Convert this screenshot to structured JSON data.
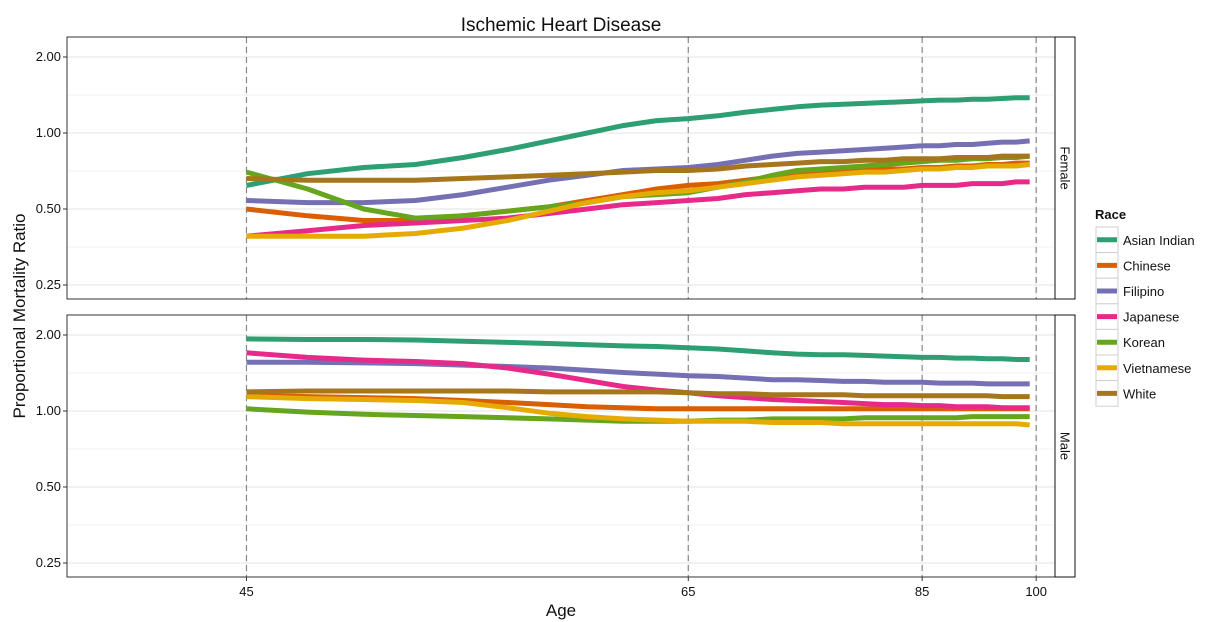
{
  "chart_data": {
    "type": "line",
    "title": "Ischemic Heart Disease",
    "xlabel": "Age",
    "ylabel": "Proportional Mortality Ratio",
    "y_scale": "log",
    "ylim": [
      0.22,
      2.4
    ],
    "xlim": [
      40,
      103
    ],
    "x_transform": "x-axis is spaced as -1/age (reciprocal scale)",
    "x_ticks": [
      45,
      65,
      85,
      100
    ],
    "y_ticks": [
      "0.25",
      "0.50",
      "1.00",
      "2.00"
    ],
    "y_tick_values": [
      0.25,
      0.5,
      1.0,
      2.0
    ],
    "vlines": [
      45,
      65,
      85,
      100
    ],
    "legend": {
      "title": "Race",
      "position": "right"
    },
    "ages": [
      45,
      47,
      49,
      51,
      53,
      55,
      57,
      59,
      61,
      63,
      65,
      67,
      69,
      71,
      73,
      75,
      77,
      79,
      81,
      83,
      85,
      87,
      89,
      91,
      93,
      95,
      97,
      99
    ],
    "panels": [
      {
        "name": "Female",
        "series": [
          {
            "name": "Asian Indian",
            "color": "#2e9e73",
            "values": [
              0.62,
              0.69,
              0.73,
              0.75,
              0.8,
              0.86,
              0.93,
              1.0,
              1.07,
              1.12,
              1.14,
              1.17,
              1.21,
              1.24,
              1.27,
              1.29,
              1.3,
              1.31,
              1.32,
              1.33,
              1.34,
              1.35,
              1.35,
              1.36,
              1.36,
              1.37,
              1.38,
              1.38
            ]
          },
          {
            "name": "Chinese",
            "color": "#d95f02",
            "values": [
              0.5,
              0.47,
              0.45,
              0.45,
              0.47,
              0.49,
              0.51,
              0.54,
              0.57,
              0.6,
              0.62,
              0.63,
              0.65,
              0.67,
              0.68,
              0.69,
              0.7,
              0.71,
              0.72,
              0.72,
              0.73,
              0.73,
              0.74,
              0.74,
              0.75,
              0.75,
              0.76,
              0.76
            ]
          },
          {
            "name": "Filipino",
            "color": "#7570b3",
            "values": [
              0.54,
              0.53,
              0.53,
              0.54,
              0.57,
              0.61,
              0.65,
              0.68,
              0.71,
              0.72,
              0.73,
              0.75,
              0.78,
              0.81,
              0.83,
              0.84,
              0.85,
              0.86,
              0.87,
              0.88,
              0.89,
              0.89,
              0.9,
              0.9,
              0.91,
              0.92,
              0.92,
              0.93
            ]
          },
          {
            "name": "Japanese",
            "color": "#e7298a",
            "values": [
              0.39,
              0.41,
              0.43,
              0.44,
              0.45,
              0.46,
              0.48,
              0.5,
              0.52,
              0.53,
              0.54,
              0.55,
              0.57,
              0.58,
              0.59,
              0.6,
              0.6,
              0.61,
              0.61,
              0.61,
              0.62,
              0.62,
              0.62,
              0.63,
              0.63,
              0.63,
              0.64,
              0.64
            ]
          },
          {
            "name": "Korean",
            "color": "#66a61e",
            "values": [
              0.7,
              0.6,
              0.5,
              0.46,
              0.47,
              0.49,
              0.51,
              0.53,
              0.56,
              0.57,
              0.58,
              0.61,
              0.64,
              0.68,
              0.71,
              0.72,
              0.73,
              0.74,
              0.75,
              0.76,
              0.77,
              0.78,
              0.78,
              0.79,
              0.79,
              0.8,
              0.8,
              0.81
            ]
          },
          {
            "name": "Vietnamese",
            "color": "#e6ab02",
            "values": [
              0.39,
              0.39,
              0.39,
              0.4,
              0.42,
              0.45,
              0.49,
              0.53,
              0.56,
              0.58,
              0.59,
              0.61,
              0.63,
              0.65,
              0.67,
              0.68,
              0.69,
              0.7,
              0.7,
              0.71,
              0.72,
              0.72,
              0.73,
              0.73,
              0.74,
              0.74,
              0.74,
              0.75
            ]
          },
          {
            "name": "White",
            "color": "#a6761d",
            "values": [
              0.66,
              0.65,
              0.65,
              0.65,
              0.66,
              0.67,
              0.68,
              0.69,
              0.7,
              0.71,
              0.71,
              0.72,
              0.74,
              0.75,
              0.76,
              0.77,
              0.77,
              0.78,
              0.78,
              0.79,
              0.79,
              0.79,
              0.8,
              0.8,
              0.8,
              0.81,
              0.81,
              0.81
            ]
          }
        ]
      },
      {
        "name": "Male",
        "series": [
          {
            "name": "Asian Indian",
            "color": "#2e9e73",
            "values": [
              1.93,
              1.92,
              1.92,
              1.91,
              1.89,
              1.87,
              1.85,
              1.83,
              1.81,
              1.8,
              1.78,
              1.76,
              1.73,
              1.7,
              1.68,
              1.67,
              1.67,
              1.66,
              1.65,
              1.64,
              1.63,
              1.63,
              1.62,
              1.62,
              1.61,
              1.61,
              1.6,
              1.6
            ]
          },
          {
            "name": "Chinese",
            "color": "#d95f02",
            "values": [
              1.15,
              1.14,
              1.13,
              1.12,
              1.1,
              1.08,
              1.06,
              1.04,
              1.03,
              1.02,
              1.02,
              1.02,
              1.02,
              1.02,
              1.02,
              1.02,
              1.02,
              1.02,
              1.02,
              1.02,
              1.02,
              1.02,
              1.02,
              1.02,
              1.02,
              1.02,
              1.02,
              1.02
            ]
          },
          {
            "name": "Filipino",
            "color": "#7570b3",
            "values": [
              1.56,
              1.56,
              1.55,
              1.54,
              1.52,
              1.5,
              1.48,
              1.45,
              1.42,
              1.4,
              1.38,
              1.37,
              1.35,
              1.33,
              1.33,
              1.32,
              1.31,
              1.31,
              1.3,
              1.3,
              1.3,
              1.29,
              1.29,
              1.29,
              1.28,
              1.28,
              1.28,
              1.28
            ]
          },
          {
            "name": "Japanese",
            "color": "#e7298a",
            "values": [
              1.7,
              1.63,
              1.59,
              1.57,
              1.54,
              1.48,
              1.4,
              1.32,
              1.25,
              1.21,
              1.18,
              1.15,
              1.13,
              1.11,
              1.1,
              1.09,
              1.08,
              1.07,
              1.06,
              1.06,
              1.05,
              1.05,
              1.04,
              1.04,
              1.04,
              1.03,
              1.03,
              1.03
            ]
          },
          {
            "name": "Korean",
            "color": "#66a61e",
            "values": [
              1.02,
              0.99,
              0.97,
              0.96,
              0.95,
              0.94,
              0.93,
              0.92,
              0.91,
              0.91,
              0.91,
              0.92,
              0.92,
              0.93,
              0.93,
              0.93,
              0.93,
              0.94,
              0.94,
              0.94,
              0.94,
              0.94,
              0.94,
              0.95,
              0.95,
              0.95,
              0.95,
              0.95
            ]
          },
          {
            "name": "Vietnamese",
            "color": "#e6ab02",
            "values": [
              1.14,
              1.12,
              1.11,
              1.1,
              1.08,
              1.03,
              0.98,
              0.95,
              0.93,
              0.92,
              0.91,
              0.91,
              0.91,
              0.9,
              0.9,
              0.9,
              0.89,
              0.89,
              0.89,
              0.89,
              0.89,
              0.89,
              0.89,
              0.89,
              0.89,
              0.89,
              0.89,
              0.88
            ]
          },
          {
            "name": "White",
            "color": "#a6761d",
            "values": [
              1.19,
              1.2,
              1.2,
              1.2,
              1.2,
              1.2,
              1.19,
              1.19,
              1.19,
              1.19,
              1.18,
              1.17,
              1.17,
              1.16,
              1.16,
              1.16,
              1.16,
              1.15,
              1.15,
              1.15,
              1.15,
              1.15,
              1.15,
              1.15,
              1.15,
              1.14,
              1.14,
              1.14
            ]
          }
        ]
      }
    ]
  }
}
